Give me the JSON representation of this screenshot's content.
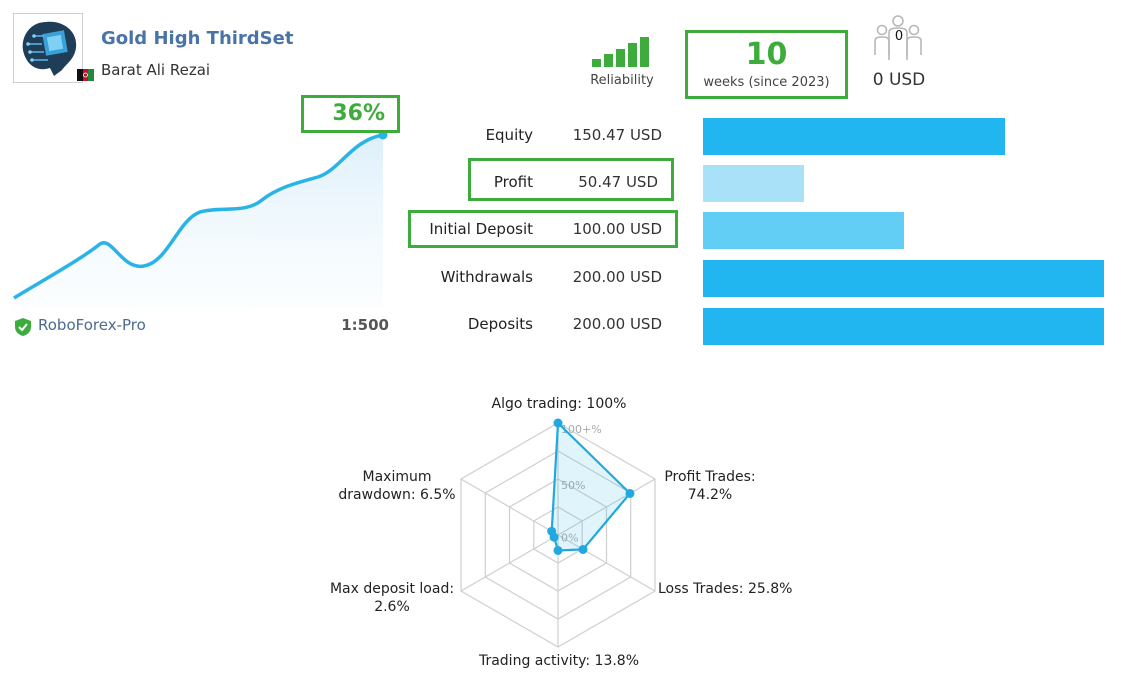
{
  "header": {
    "title": "Gold High ThirdSet",
    "author": "Barat Ali Rezai",
    "reliability_label": "Reliability",
    "weeks_value": "10",
    "weeks_label": "weeks (since 2023)",
    "subscribers_count": "0",
    "subscribers_usd": "0 USD"
  },
  "growth": {
    "percent": "36%",
    "broker": "RoboForex-Pro",
    "leverage": "1:500"
  },
  "stats": [
    {
      "label": "Equity",
      "value": "150.47 USD",
      "amount": 150.47,
      "color": "#21b6ef",
      "highlighted": false
    },
    {
      "label": "Profit",
      "value": "50.47 USD",
      "amount": 50.47,
      "color": "#a9e1f8",
      "highlighted": true
    },
    {
      "label": "Initial Deposit",
      "value": "100.00 USD",
      "amount": 100.0,
      "color": "#62cdf5",
      "highlighted": true
    },
    {
      "label": "Withdrawals",
      "value": "200.00 USD",
      "amount": 200.0,
      "color": "#21b6ef",
      "highlighted": false
    },
    {
      "label": "Deposits",
      "value": "200.00 USD",
      "amount": 200.0,
      "color": "#21b6ef",
      "highlighted": false
    }
  ],
  "radar": {
    "axes": [
      {
        "line1": "Algo trading: 100%",
        "line2": "",
        "value": 100
      },
      {
        "line1": "Profit Trades:",
        "line2": "74.2%",
        "value": 74.2
      },
      {
        "line1": "Loss Trades: 25.8%",
        "line2": "",
        "value": 25.8
      },
      {
        "line1": "Trading activity: 13.8%",
        "line2": "",
        "value": 13.8
      },
      {
        "line1": "Max deposit load:",
        "line2": "2.6%",
        "value": 2.6
      },
      {
        "line1": "Maximum",
        "line2": "drawdown: 6.5%",
        "value": 6.5
      }
    ],
    "tick_labels": [
      "100+%",
      "50%",
      "0%"
    ]
  },
  "colors": {
    "accent_green": "#3dac3d",
    "line_blue": "#2ab3e6",
    "title_blue": "#4a73a8"
  }
}
